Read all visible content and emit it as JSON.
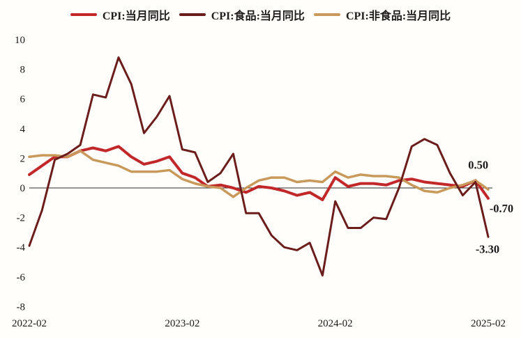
{
  "figure": {
    "background": "#fffefb"
  },
  "chart_data": {
    "type": "line",
    "title": "",
    "xlabel": "",
    "ylabel": "",
    "x": [
      "2022-02",
      "2022-03",
      "2022-04",
      "2022-05",
      "2022-06",
      "2022-07",
      "2022-08",
      "2022-09",
      "2022-10",
      "2022-11",
      "2022-12",
      "2023-01",
      "2023-02",
      "2023-03",
      "2023-04",
      "2023-05",
      "2023-06",
      "2023-07",
      "2023-08",
      "2023-09",
      "2023-10",
      "2023-11",
      "2023-12",
      "2024-01",
      "2024-02",
      "2024-03",
      "2024-04",
      "2024-05",
      "2024-06",
      "2024-07",
      "2024-08",
      "2024-09",
      "2024-10",
      "2024-11",
      "2024-12",
      "2025-01",
      "2025-02"
    ],
    "x_tick_labels": [
      "2022-02",
      "2023-02",
      "2024-02",
      "2025-02"
    ],
    "y_ticks": [
      10,
      8,
      6,
      4,
      2,
      0,
      -2,
      -4,
      -6,
      -8
    ],
    "ylim": [
      -8,
      10
    ],
    "grid": false,
    "legend_position": "top-center",
    "axis_line_color": "#2a2a2a",
    "text_color": "#1a1a1a",
    "series": [
      {
        "name": "CPI:当月同比",
        "color": "#c1282a",
        "values": [
          0.9,
          1.5,
          2.1,
          2.1,
          2.5,
          2.7,
          2.5,
          2.8,
          2.1,
          1.6,
          1.8,
          2.1,
          1.0,
          0.7,
          0.1,
          0.2,
          0.0,
          -0.3,
          0.1,
          0.0,
          -0.2,
          -0.5,
          -0.3,
          -0.8,
          0.7,
          0.1,
          0.3,
          0.3,
          0.2,
          0.5,
          0.6,
          0.4,
          0.3,
          0.2,
          0.1,
          0.5,
          -0.7
        ]
      },
      {
        "name": "CPI:食品:当月同比",
        "color": "#6b1d1b",
        "values": [
          -3.9,
          -1.5,
          1.9,
          2.3,
          2.9,
          6.3,
          6.1,
          8.8,
          7.0,
          3.7,
          4.8,
          6.2,
          2.6,
          2.4,
          0.4,
          1.0,
          2.3,
          -1.7,
          -1.7,
          -3.2,
          -4.0,
          -4.2,
          -3.7,
          -5.9,
          -0.9,
          -2.7,
          -2.7,
          -2.0,
          -2.1,
          0.0,
          2.8,
          3.3,
          2.9,
          1.0,
          -0.5,
          0.4,
          -3.3
        ]
      },
      {
        "name": "CPI:非食品:当月同比",
        "color": "#c8995a",
        "values": [
          2.1,
          2.2,
          2.2,
          2.1,
          2.5,
          1.9,
          1.7,
          1.5,
          1.1,
          1.1,
          1.1,
          1.2,
          0.6,
          0.3,
          0.1,
          0.0,
          -0.6,
          0.0,
          0.5,
          0.7,
          0.7,
          0.4,
          0.5,
          0.4,
          1.1,
          0.7,
          0.9,
          0.8,
          0.8,
          0.7,
          0.2,
          -0.2,
          -0.3,
          0.0,
          0.2,
          0.5,
          -0.1
        ]
      }
    ],
    "annotations": [
      {
        "text": "0.50",
        "x": "2025-01",
        "y": 0.5
      },
      {
        "text": "-0.70",
        "x": "2025-02",
        "y": -0.7
      },
      {
        "text": "-3.30",
        "x": "2025-02",
        "y": -3.3
      }
    ]
  }
}
